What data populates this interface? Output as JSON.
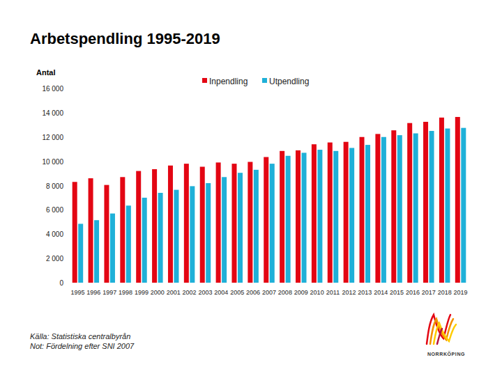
{
  "chart_data": {
    "type": "bar",
    "title": "Arbetspendling 1995-2019",
    "y_label": "Antal",
    "categories": [
      "1995",
      "1996",
      "1997",
      "1998",
      "1999",
      "2000",
      "2001",
      "2002",
      "2003",
      "2004",
      "2005",
      "2006",
      "2007",
      "2008",
      "2009",
      "2010",
      "2011",
      "2012",
      "2013",
      "2014",
      "2015",
      "2016",
      "2017",
      "2018",
      "2019"
    ],
    "series": [
      {
        "name": "Inpendling",
        "color": "#e30613",
        "values": [
          8300,
          8600,
          8050,
          8700,
          9200,
          9350,
          9650,
          9800,
          9550,
          9900,
          9800,
          9950,
          10350,
          10850,
          10900,
          11400,
          11550,
          11600,
          12000,
          12250,
          12550,
          13150,
          13250,
          13600,
          13650
        ]
      },
      {
        "name": "Utpendling",
        "color": "#1fb0d8",
        "values": [
          4850,
          5150,
          5700,
          6350,
          7000,
          7400,
          7650,
          7950,
          8200,
          8700,
          9050,
          9300,
          9800,
          10450,
          10700,
          10950,
          10850,
          11100,
          11350,
          12000,
          12150,
          12300,
          12500,
          12700,
          12750
        ]
      }
    ],
    "ylim": [
      0,
      16000
    ],
    "yticks": [
      0,
      {
        "value": 2000,
        "label": "2 000"
      },
      {
        "value": 4000,
        "label": "4 000"
      },
      {
        "value": 6000,
        "label": "6 000"
      },
      {
        "value": 8000,
        "label": "8 000"
      },
      {
        "value": 10000,
        "label": "10 000"
      },
      {
        "value": 12000,
        "label": "12 000"
      },
      {
        "value": 14000,
        "label": "14 000"
      },
      {
        "value": 16000,
        "label": "16 000"
      }
    ],
    "grid": false,
    "legend": "top",
    "annotations": [
      "Källa: Statistiska centralbyrån",
      "Not: Fördelning efter SNI 2007"
    ]
  },
  "logo": {
    "text": "NORRKÖPING"
  }
}
